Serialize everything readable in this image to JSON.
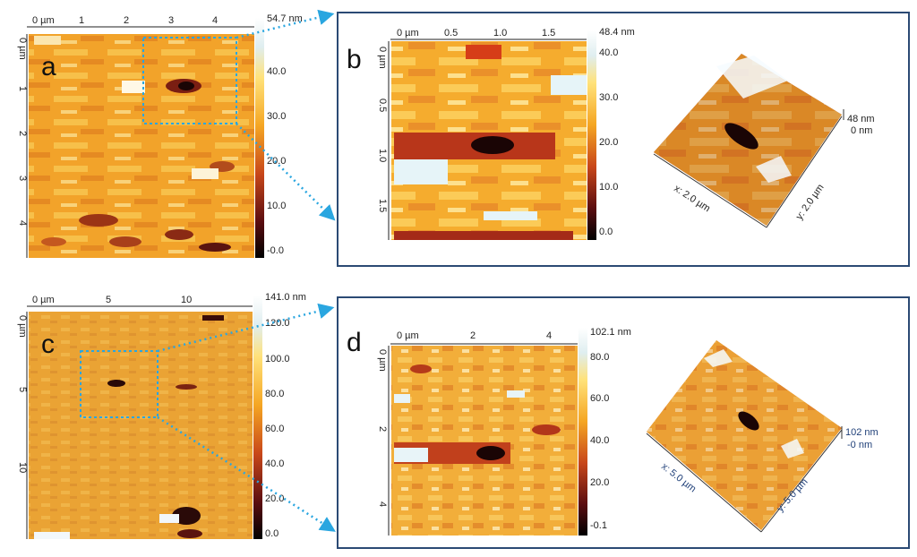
{
  "panels": {
    "a": {
      "letter": "a",
      "x_ticks": [
        "0 µm",
        "1",
        "2",
        "3",
        "4"
      ],
      "y_ticks": [
        "0 µm",
        "1",
        "2",
        "3",
        "4"
      ],
      "colorbar_max": "54.7 nm",
      "colorbar_ticks": [
        "40.0",
        "30.0",
        "20.0",
        "10.0",
        "-0.0"
      ]
    },
    "b": {
      "letter": "b",
      "x_ticks": [
        "0 µm",
        "0.5",
        "1.0",
        "1.5"
      ],
      "y_ticks": [
        "0 µm",
        "0.5",
        "1.0",
        "1.5"
      ],
      "colorbar_max": "48.4 nm",
      "colorbar_ticks": [
        "40.0",
        "30.0",
        "20.0",
        "10.0",
        "0.0"
      ],
      "view3d": {
        "z_top": "48 nm",
        "z_bottom": "0 nm",
        "x_label": "x: 2.0 µm",
        "y_label": "y: 2.0 µm"
      }
    },
    "c": {
      "letter": "c",
      "x_ticks": [
        "0 µm",
        "5",
        "10"
      ],
      "y_ticks": [
        "0 µm",
        "5",
        "10"
      ],
      "colorbar_max": "141.0 nm",
      "colorbar_ticks": [
        "120.0",
        "100.0",
        "80.0",
        "60.0",
        "40.0",
        "20.0",
        "0.0"
      ]
    },
    "d": {
      "letter": "d",
      "x_ticks": [
        "0 µm",
        "2",
        "4"
      ],
      "y_ticks": [
        "0 µm",
        "2",
        "4"
      ],
      "colorbar_max": "102.1 nm",
      "colorbar_ticks": [
        "80.0",
        "60.0",
        "40.0",
        "20.0",
        "-0.1"
      ],
      "view3d": {
        "z_top": "102 nm",
        "z_bottom": "-0 nm",
        "x_label": "x: 5.0 µm",
        "y_label": "y: 5.0 µm"
      }
    }
  },
  "colors": {
    "arrow": "#2aa6e0",
    "frame": "#2b4a74",
    "blue_text": "#1f3f78"
  }
}
